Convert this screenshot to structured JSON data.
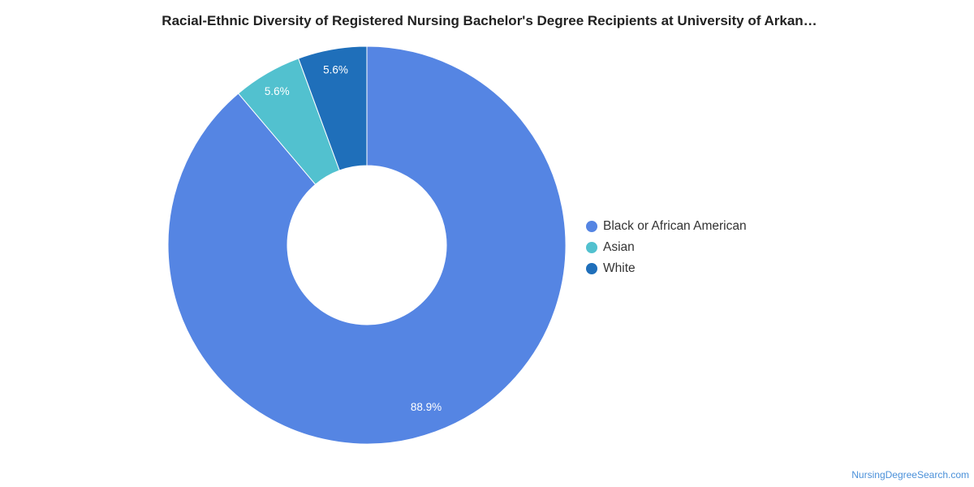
{
  "chart_data": {
    "type": "pie",
    "title": "Racial-Ethnic Diversity of Registered Nursing Bachelor's Degree Recipients at University of Arkan…",
    "hole": true,
    "legend_position": "right",
    "slices": [
      {
        "label": "Black or African American",
        "value": 88.9,
        "display": "88.9%",
        "color": "#5585e3"
      },
      {
        "label": "Asian",
        "value": 5.6,
        "display": "5.6%",
        "color": "#52c1cf"
      },
      {
        "label": "White",
        "value": 5.6,
        "display": "5.6%",
        "color": "#1f6fba"
      }
    ]
  },
  "footer": {
    "source": "NursingDegreeSearch.com"
  }
}
